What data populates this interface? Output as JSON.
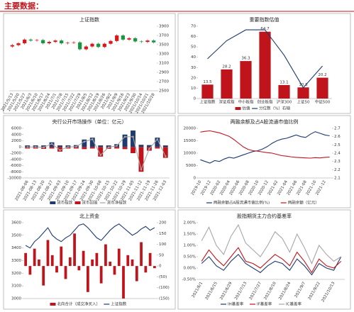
{
  "header": {
    "title": "主要数据："
  },
  "chart_data": [
    {
      "type": "candlestick",
      "title": "上证指数",
      "y_axis_side": "right",
      "up_color": "#d7191c",
      "down_color": "#1a9641",
      "categories": [
        "2021/5/13",
        "2021/5/20",
        "2021/5/27",
        "2021/6/3",
        "2021/6/10",
        "2021/6/17",
        "2021/6/24",
        "2021/7/1",
        "2021/7/8",
        "2021/7/15",
        "2021/7/22",
        "2021/7/29",
        "2021/8/5",
        "2021/8/12",
        "2021/8/19",
        "2021/8/26",
        "2021/9/2",
        "2021/9/9",
        "2021/9/16",
        "2021/9/23",
        "2021/9/30",
        "2021/10/14",
        "2021/10/21",
        "2021/10/28"
      ],
      "open": [
        3460,
        3490,
        3530,
        3610,
        3590,
        3600,
        3530,
        3560,
        3590,
        3530,
        3540,
        3550,
        3400,
        3460,
        3520,
        3450,
        3520,
        3580,
        3700,
        3610,
        3640,
        3570,
        3560,
        3590
      ],
      "close": [
        3490,
        3530,
        3610,
        3590,
        3600,
        3530,
        3560,
        3590,
        3530,
        3540,
        3550,
        3400,
        3460,
        3520,
        3450,
        3520,
        3580,
        3700,
        3610,
        3640,
        3570,
        3560,
        3590,
        3550
      ],
      "high": [
        3515,
        3555,
        3635,
        3635,
        3625,
        3625,
        3585,
        3615,
        3615,
        3565,
        3575,
        3575,
        3485,
        3545,
        3545,
        3545,
        3605,
        3725,
        3725,
        3665,
        3665,
        3595,
        3615,
        3615
      ],
      "low": [
        3435,
        3465,
        3505,
        3565,
        3565,
        3505,
        3505,
        3535,
        3505,
        3505,
        3515,
        3375,
        3375,
        3435,
        3425,
        3425,
        3495,
        3555,
        3585,
        3585,
        3545,
        3535,
        3535,
        3525
      ],
      "ylim": [
        2500,
        3900
      ],
      "yticks": [
        2500,
        2700,
        2900,
        3100,
        3300,
        3500,
        3700,
        3900
      ]
    },
    {
      "type": "combo",
      "title": "重要指数估值",
      "show_values": true,
      "categories": [
        "上证指数",
        "深证成指",
        "中小板指",
        "创业板指",
        "沪深300",
        "上证50",
        "中证500"
      ],
      "series": [
        {
          "name": "估值",
          "mark": "bar",
          "color": "#c0141c",
          "values": [
            13.5,
            28.2,
            36.3,
            64.7,
            13.1,
            10.8,
            20.2
          ]
        },
        {
          "name": "分位数（%）右轴",
          "mark": "line",
          "axis": "y2",
          "color": "#1f3a6e",
          "values": [
            55,
            80,
            95,
            95,
            60,
            15,
            45
          ]
        }
      ],
      "ylim": [
        0,
        70
      ],
      "yticks": [
        0,
        10,
        20,
        30,
        40,
        50,
        60,
        70
      ],
      "y2lim": [
        0,
        100
      ]
    },
    {
      "type": "combo",
      "title": "央行公开市场操作（单位：亿元）",
      "categories": [
        "2021-08-06",
        "2021-08-13",
        "2021-08-20",
        "2021-08-27",
        "2021-09-03",
        "2021-09-10",
        "2021-09-17",
        "2021-09-24",
        "2021-09-30",
        "2021-10-08",
        "2021-10-15",
        "2021-10-22",
        "2021-10-29",
        "2021-11-05",
        "2021-11-12",
        "2021-11-19",
        "2021-11-26",
        "2021-12-03"
      ],
      "series": [
        {
          "name": "货币投放",
          "mark": "bar",
          "color": "#1f3a6e",
          "values": [
            500,
            500,
            500,
            1500,
            500,
            500,
            600,
            2400,
            3000,
            500,
            500,
            900,
            4000,
            5300,
            700,
            600,
            3000,
            500
          ]
        },
        {
          "name": "货币回笼",
          "mark": "bar",
          "color": "#c0141c",
          "values": [
            -500,
            -500,
            -600,
            -500,
            -1500,
            -500,
            -500,
            -700,
            -500,
            -3100,
            -600,
            -500,
            -700,
            -2000,
            -8000,
            -1200,
            -500,
            -3500
          ]
        },
        {
          "name": "货币净投放",
          "mark": "line",
          "markers": true,
          "color": "#a6a6a6",
          "values": [
            0,
            0,
            -100,
            1000,
            -1000,
            0,
            100,
            1700,
            2500,
            -2600,
            -100,
            400,
            3300,
            3300,
            -7300,
            -600,
            2500,
            -3000
          ]
        }
      ],
      "ylim": [
        -10000,
        6000
      ],
      "yticks": [
        -10000,
        -8000,
        -6000,
        -4000,
        -2000,
        0,
        2000,
        4000,
        6000
      ]
    },
    {
      "type": "line",
      "title": "两融余额及占A股流通市值比例",
      "categories": [
        "2019-10",
        null,
        "2019-12",
        null,
        "2020-02",
        null,
        "2020-04",
        null,
        "2020-06",
        null,
        "2020-08",
        null,
        "2020-10",
        null,
        "2020-12",
        null,
        "2021-02",
        null,
        "2021-04",
        null,
        "2021-06",
        null,
        "2021-08",
        null,
        "2021-10",
        null,
        "2021-12",
        null
      ],
      "series": [
        {
          "name": "两融余额占A股流通市值比例(%)",
          "axis": "y2",
          "color": "#1f3a6e",
          "values": [
            2.32,
            2.3,
            2.28,
            2.31,
            2.3,
            2.33,
            2.35,
            2.34,
            2.36,
            2.38,
            2.4,
            2.42,
            2.43,
            2.45,
            2.48,
            2.52,
            2.55,
            2.57,
            2.58,
            2.6,
            2.62,
            2.6,
            2.59,
            2.63,
            2.66,
            2.64,
            2.62,
            2.61
          ]
        },
        {
          "name": "两融余额（亿元）",
          "color": "#c0141c",
          "values": [
            18500,
            18800,
            19000,
            18600,
            18200,
            17500,
            16800,
            15500,
            14000,
            12500,
            11500,
            11000,
            10800,
            10500,
            10200,
            10000,
            9500,
            9000,
            8800,
            8500,
            8300,
            8200,
            8100,
            8000,
            8200,
            8100,
            8300,
            8400
          ]
        }
      ],
      "ylim": [
        0,
        20000
      ],
      "yticks": [
        0,
        5000,
        10000,
        15000,
        20000
      ],
      "y2lim": [
        2.1,
        2.7
      ],
      "y2ticks": [
        2.1,
        2.2,
        2.3,
        2.4,
        2.5,
        2.6,
        2.7
      ]
    },
    {
      "type": "combo",
      "title": "北上资金",
      "series": [
        {
          "name": "北向合计（成交净买入）",
          "mark": "bar",
          "axis": "y2",
          "color": "#c0141c",
          "values": [
            60,
            -40,
            80,
            30,
            -90,
            120,
            50,
            -30,
            90,
            -60,
            40,
            150,
            -20,
            70,
            -120,
            30,
            60,
            -80,
            100,
            20,
            -40,
            80,
            -150,
            50,
            30,
            -70,
            110,
            -30,
            60,
            -10
          ]
        },
        {
          "name": "上证指数",
          "mark": "line",
          "color": "#1f3a6e",
          "values": [
            3420,
            3400,
            3450,
            3480,
            3520,
            3560,
            3500,
            3470,
            3450,
            3480,
            3500,
            3540,
            3580,
            3590,
            3560,
            3520,
            3480,
            3460,
            3500,
            3540,
            3570,
            3590,
            3560,
            3530,
            3500,
            3520,
            3550,
            3570,
            3540,
            3560
          ]
        }
      ],
      "ylim": [
        3000,
        3600
      ],
      "yticks": [
        3000,
        3100,
        3200,
        3300,
        3400,
        3500,
        3600
      ],
      "y2lim": [
        -150,
        200
      ],
      "y2ticks": [
        {
          "value": -150,
          "label": "(150)"
        },
        {
          "value": -100,
          "label": "(100)"
        },
        {
          "value": -50,
          "label": "(50)"
        },
        0,
        50,
        100,
        150,
        200
      ]
    },
    {
      "type": "line",
      "title": "股指期货主力合约基差率",
      "categories": [
        "2021/6/1",
        null,
        "2021/6/15",
        null,
        "2021/6/29",
        null,
        "2021/7/13",
        null,
        "2021/7/27",
        null,
        "2021/8/10",
        null,
        "2021/8/24",
        null,
        "2021/9/7",
        null,
        "2021/9/22",
        null,
        "2021/10/13",
        null
      ],
      "series": [
        {
          "name": "IH基差率",
          "color": "#1f3a6e",
          "values": [
            0.2,
            0.5,
            0.1,
            -0.1,
            0.3,
            0.6,
            0.2,
            0.0,
            -0.2,
            0.1,
            0.3,
            0.2,
            -0.1,
            0.4,
            0.1,
            -0.3,
            0.2,
            0.0,
            -0.1,
            0.5
          ]
        },
        {
          "name": "IF基差率",
          "color": "#c0141c",
          "values": [
            0.3,
            0.8,
            0.4,
            0.1,
            0.5,
            0.9,
            0.3,
            0.2,
            0.0,
            0.3,
            0.6,
            0.4,
            0.1,
            0.7,
            0.3,
            -0.2,
            0.4,
            0.1,
            0.0,
            0.3
          ]
        },
        {
          "name": "IC基差率",
          "color": "#a6a6a6",
          "values": [
            1.2,
            1.8,
            1.0,
            0.6,
            1.4,
            1.9,
            1.1,
            0.8,
            0.5,
            1.0,
            1.6,
            1.3,
            0.7,
            1.5,
            0.9,
            0.2,
            1.0,
            0.6,
            0.3,
            0.5
          ]
        }
      ],
      "ylim": [
        -0.5,
        2
      ],
      "yticks": [
        {
          "value": -0.5,
          "label": "-0.50%"
        },
        {
          "value": 0,
          "label": "0.00%"
        },
        {
          "value": 0.5,
          "label": "0.50%"
        },
        {
          "value": 1,
          "label": "1.00%"
        },
        {
          "value": 1.5,
          "label": "1.50%"
        },
        {
          "value": 2,
          "label": "2.00%"
        }
      ]
    }
  ]
}
